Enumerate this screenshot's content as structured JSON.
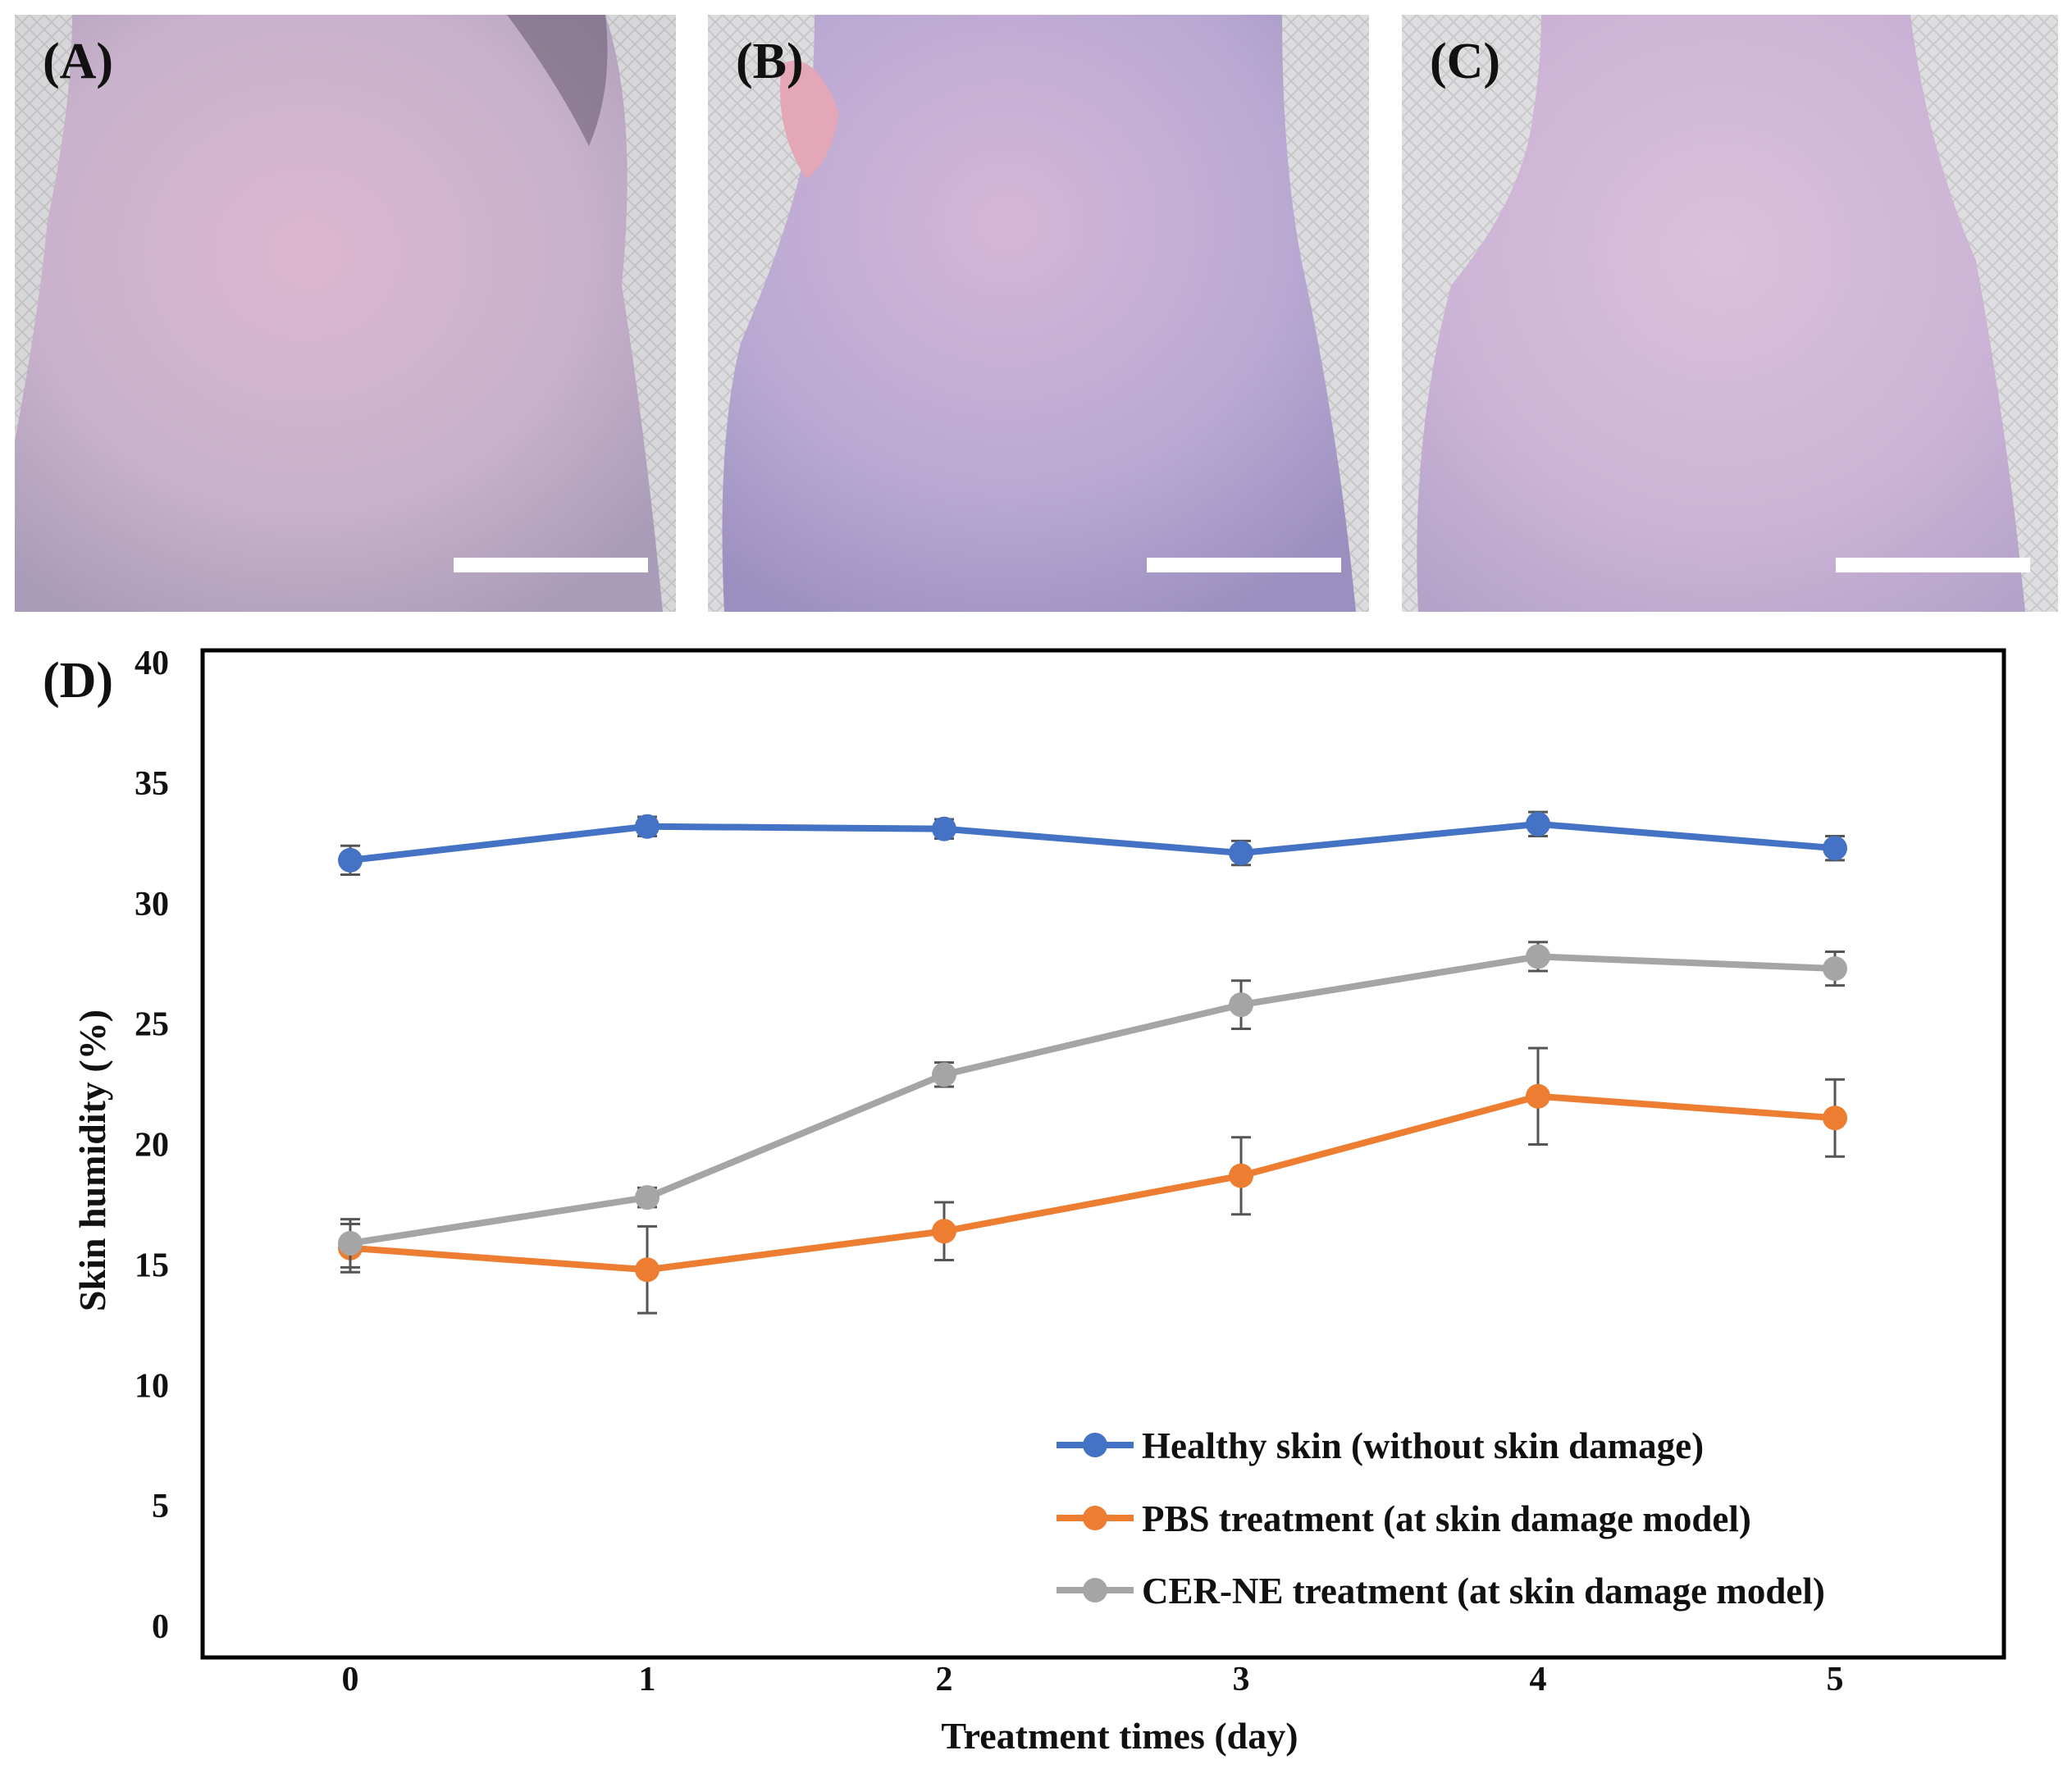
{
  "panels": [
    {
      "label": "(A)",
      "description_icon": "mouse-back-skin-photo"
    },
    {
      "label": "(B)",
      "description_icon": "mouse-back-skin-photo"
    },
    {
      "label": "(C)",
      "description_icon": "mouse-back-skin-photo"
    }
  ],
  "chart_label": "(D)",
  "colors": {
    "healthy": "#4472C4",
    "pbs": "#ED7D31",
    "cer": "#A5A5A5",
    "errorbar": "#555555"
  },
  "chart_data": {
    "type": "line",
    "xlabel": "Treatment times (day)",
    "ylabel": "Skin humidity (%)",
    "x": [
      0,
      1,
      2,
      3,
      4,
      5
    ],
    "ylim": [
      0,
      40
    ],
    "yticks": [
      0,
      5,
      10,
      15,
      20,
      25,
      30,
      35,
      40
    ],
    "grid": false,
    "legend_position": "bottom-right",
    "series": [
      {
        "name": "Healthy skin (without skin damage)",
        "values": [
          31.8,
          33.2,
          33.1,
          32.1,
          33.3,
          32.3
        ],
        "errors": [
          0.6,
          0.4,
          0.4,
          0.5,
          0.5,
          0.5
        ],
        "color_key": "healthy"
      },
      {
        "name": "PBS treatment (at skin damage model)",
        "values": [
          15.7,
          14.8,
          16.4,
          18.7,
          22.0,
          21.1
        ],
        "errors": [
          1.0,
          1.8,
          1.2,
          1.6,
          2.0,
          1.6
        ],
        "color_key": "pbs"
      },
      {
        "name": "CER-NE treatment (at skin damage model)",
        "values": [
          15.9,
          17.8,
          22.9,
          25.8,
          27.8,
          27.3
        ],
        "errors": [
          1.0,
          0.4,
          0.5,
          1.0,
          0.6,
          0.7
        ],
        "color_key": "cer"
      }
    ]
  }
}
